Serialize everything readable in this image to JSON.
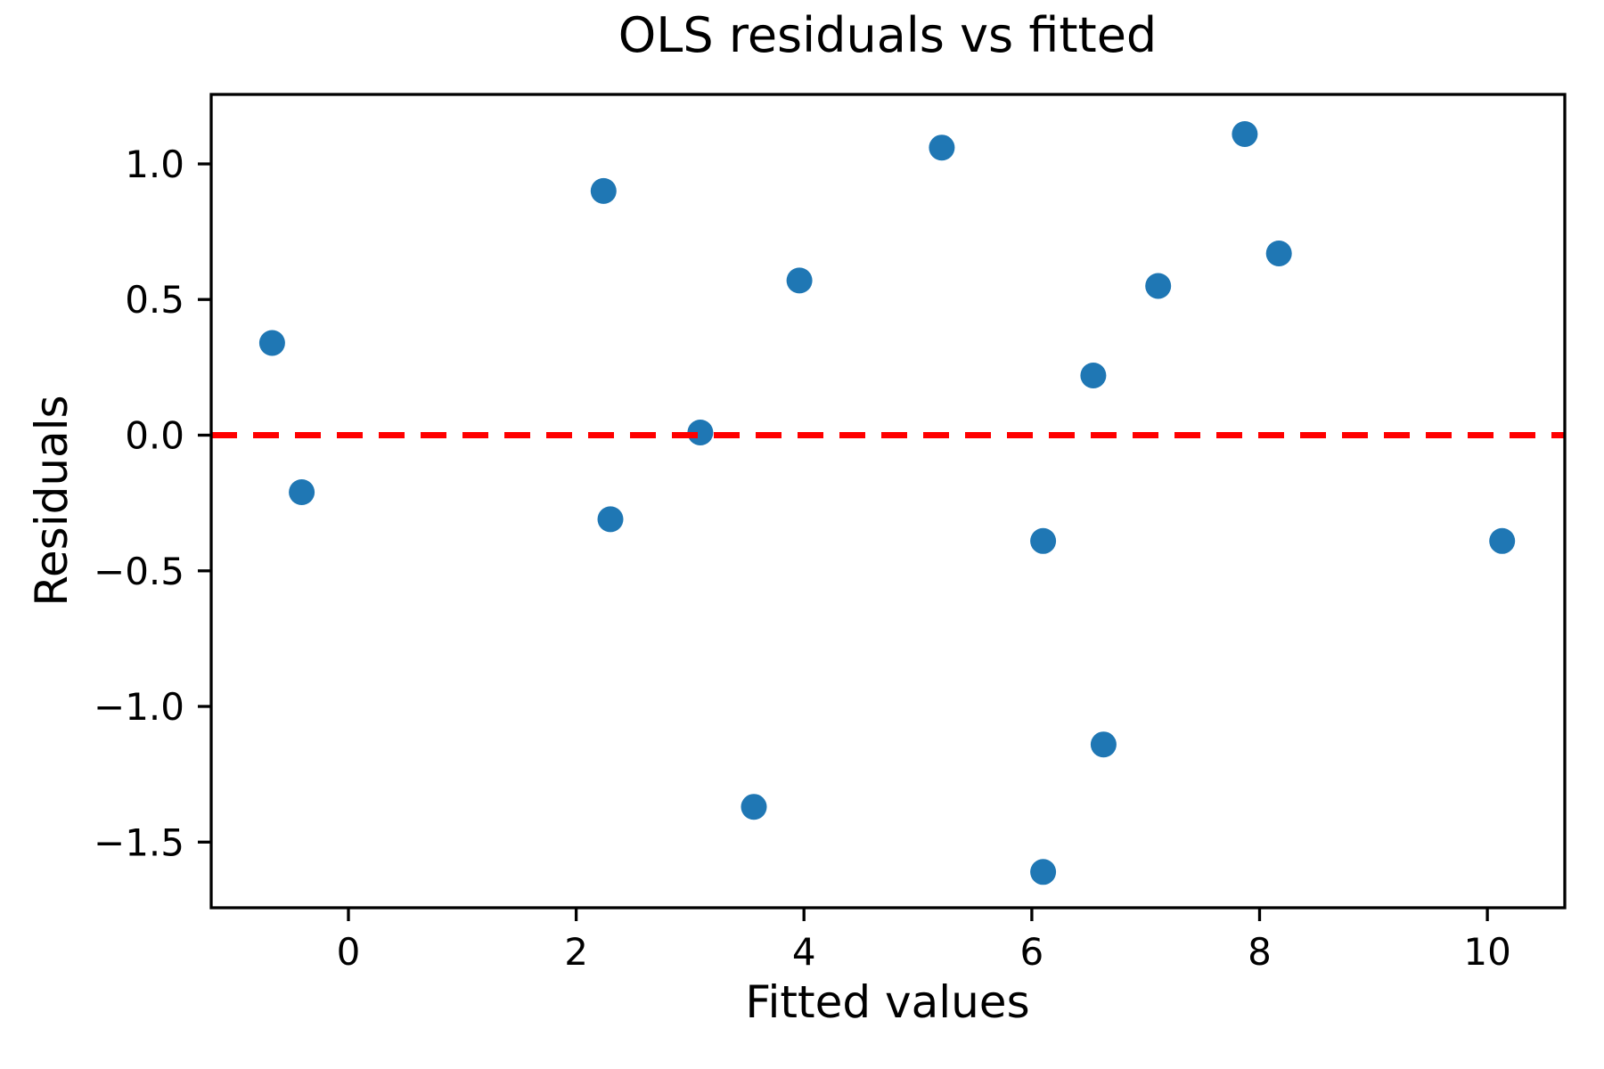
{
  "figure": {
    "background": "#ffffff",
    "text_color": "#000000",
    "axes_color": "#000000"
  },
  "chart_data": {
    "type": "scatter",
    "title": "OLS residuals vs fitted",
    "xlabel": "Fitted values",
    "ylabel": "Residuals",
    "xlim": [
      -1.205,
      10.68
    ],
    "ylim": [
      -1.742,
      1.256
    ],
    "grid": false,
    "legend": null,
    "marker_color": "#1f77b4",
    "zero_line": {
      "y": 0,
      "color": "#ff0000",
      "style": "dashed"
    },
    "xticks": {
      "values": [
        0,
        2,
        4,
        6,
        8,
        10
      ],
      "labels": [
        "0",
        "2",
        "4",
        "6",
        "8",
        "10"
      ]
    },
    "yticks": {
      "values": [
        -1.5,
        -1.0,
        -0.5,
        0.0,
        0.5,
        1.0
      ],
      "labels": [
        "−1.5",
        "−1.0",
        "−0.5",
        "0.0",
        "0.5",
        "1.0"
      ]
    },
    "series": [
      {
        "name": "residuals",
        "x": [
          -0.67,
          -0.41,
          2.24,
          2.3,
          3.09,
          3.56,
          3.96,
          5.21,
          6.1,
          6.1,
          6.54,
          6.63,
          7.11,
          7.87,
          8.17,
          10.13
        ],
        "y": [
          0.34,
          -0.21,
          0.9,
          -0.31,
          0.01,
          -1.37,
          0.57,
          1.06,
          -0.39,
          -1.61,
          0.22,
          -1.14,
          0.55,
          1.11,
          0.67,
          -0.39
        ]
      }
    ]
  }
}
